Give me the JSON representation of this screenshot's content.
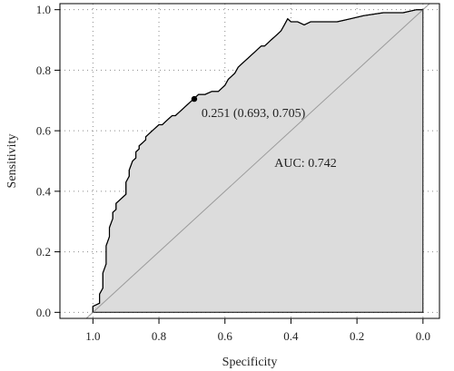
{
  "chart_data": {
    "type": "line",
    "title": "",
    "xlabel": "Specificity",
    "ylabel": "Sensitivity",
    "x_reversed": true,
    "xlim": [
      1.1,
      -0.05
    ],
    "ylim": [
      -0.02,
      1.02
    ],
    "x_ticks": [
      1.0,
      0.8,
      0.6,
      0.4,
      0.2,
      0.0
    ],
    "x_tick_labels": [
      "1.0",
      "0.8",
      "0.6",
      "0.4",
      "0.2",
      "0.0"
    ],
    "y_ticks": [
      0.0,
      0.2,
      0.4,
      0.6,
      0.8,
      1.0
    ],
    "y_tick_labels": [
      "0.0",
      "0.2",
      "0.4",
      "0.6",
      "0.8",
      "1.0"
    ],
    "grid": "dotted",
    "area_fill": "#dcdcdc",
    "curve_color": "#000000",
    "diagonal_color": "#9a9a9a",
    "series": [
      {
        "specificity": [
          1.0,
          1.0,
          0.98,
          0.98,
          0.97,
          0.97,
          0.96,
          0.96,
          0.95,
          0.95,
          0.94,
          0.94,
          0.93,
          0.93,
          0.92,
          0.91,
          0.9,
          0.9,
          0.89,
          0.89,
          0.88,
          0.87,
          0.87,
          0.86,
          0.86,
          0.85,
          0.84,
          0.84,
          0.82,
          0.81,
          0.8,
          0.79,
          0.78,
          0.77,
          0.76,
          0.75,
          0.74,
          0.73,
          0.72,
          0.71,
          0.7,
          0.69,
          0.69,
          0.68,
          0.66,
          0.64,
          0.62,
          0.61,
          0.6,
          0.59,
          0.58,
          0.57,
          0.56,
          0.55,
          0.54,
          0.53,
          0.52,
          0.51,
          0.5,
          0.49,
          0.48,
          0.47,
          0.46,
          0.45,
          0.44,
          0.43,
          0.42,
          0.41,
          0.4,
          0.38,
          0.36,
          0.34,
          0.3,
          0.26,
          0.22,
          0.18,
          0.12,
          0.06,
          0.02,
          0.0
        ],
        "sensitivity": [
          0.0,
          0.02,
          0.03,
          0.06,
          0.08,
          0.13,
          0.16,
          0.22,
          0.25,
          0.28,
          0.31,
          0.33,
          0.34,
          0.36,
          0.37,
          0.38,
          0.39,
          0.43,
          0.45,
          0.47,
          0.5,
          0.51,
          0.53,
          0.54,
          0.55,
          0.56,
          0.57,
          0.58,
          0.6,
          0.61,
          0.62,
          0.62,
          0.63,
          0.64,
          0.65,
          0.65,
          0.66,
          0.67,
          0.68,
          0.69,
          0.7,
          0.705,
          0.71,
          0.72,
          0.72,
          0.73,
          0.73,
          0.74,
          0.75,
          0.77,
          0.78,
          0.79,
          0.81,
          0.82,
          0.83,
          0.84,
          0.85,
          0.86,
          0.87,
          0.88,
          0.88,
          0.89,
          0.9,
          0.91,
          0.92,
          0.93,
          0.95,
          0.97,
          0.96,
          0.96,
          0.95,
          0.96,
          0.96,
          0.96,
          0.97,
          0.98,
          0.99,
          0.99,
          1.0,
          1.0
        ]
      }
    ],
    "highlight_point": {
      "specificity": 0.693,
      "sensitivity": 0.705,
      "label": "0.251 (0.693, 0.705)"
    },
    "annotation": {
      "text": "AUC: 0.742",
      "specificity": 0.45,
      "sensitivity": 0.48
    }
  }
}
